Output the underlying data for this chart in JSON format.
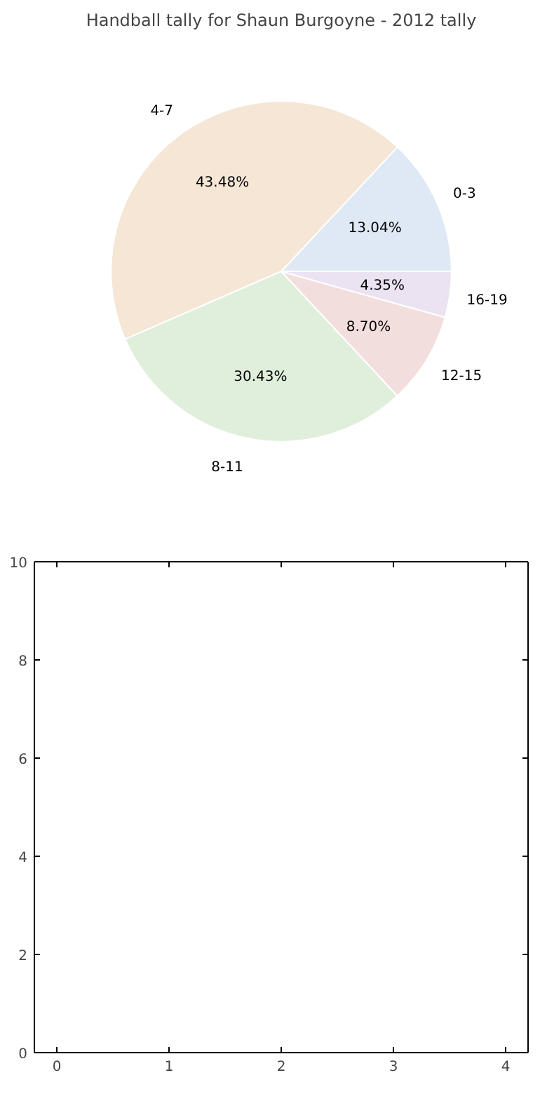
{
  "chart_data": [
    {
      "type": "pie",
      "title": "Handball tally for Shaun Burgoyne - 2012 tally",
      "categories": [
        "0-3",
        "4-7",
        "8-11",
        "12-15",
        "16-19"
      ],
      "values": [
        13.04,
        43.48,
        30.43,
        8.7,
        4.35
      ],
      "value_labels": [
        "13.04%",
        "43.48%",
        "30.43%",
        "8.70%",
        "4.35%"
      ],
      "colors": [
        "#dfe9f5",
        "#f5e6d6",
        "#e0efdc",
        "#f3dede",
        "#ebe3f2"
      ]
    },
    {
      "type": "scatter",
      "xlim": [
        -0.2,
        4.2
      ],
      "ylim": [
        0,
        10
      ],
      "xticks": [
        0,
        1,
        2,
        3,
        4
      ],
      "yticks": [
        0,
        2,
        4,
        6,
        8,
        10
      ]
    }
  ]
}
